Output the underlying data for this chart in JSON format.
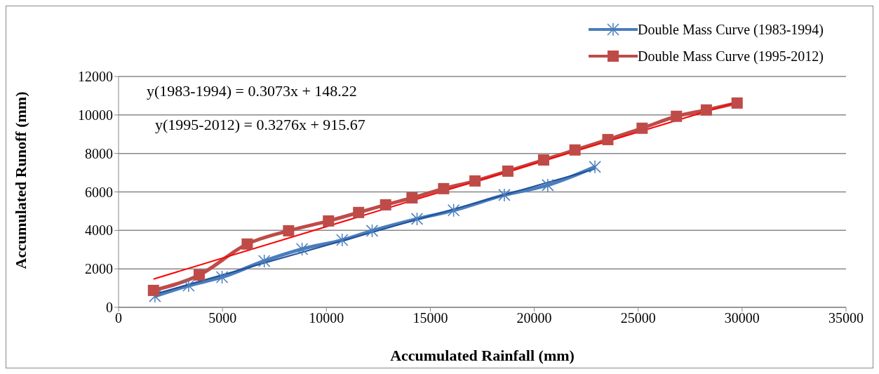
{
  "chart_data": {
    "type": "line",
    "xlabel": "Accumulated Rainfall (mm)",
    "ylabel": "Accumulated Runoff (mm)",
    "xlim": [
      0,
      35000
    ],
    "xticks": [
      0,
      5000,
      10000,
      15000,
      20000,
      25000,
      30000,
      35000
    ],
    "ylim": [
      0,
      12000
    ],
    "yticks": [
      0,
      2000,
      4000,
      6000,
      8000,
      10000,
      12000
    ],
    "grid": "y",
    "legend": "top right",
    "annotations": [
      "y(1983-1994) = 0.3073x + 148.22",
      "y(1995-2012) = 0.3276x + 915.67"
    ],
    "series": [
      {
        "name": "Double Mass Curve (1983-1994)",
        "color": "#4a7ebb",
        "marker": "cross",
        "x": [
          1750,
          3370,
          4980,
          7010,
          8830,
          10760,
          12200,
          14360,
          16120,
          18560,
          20650,
          22920
        ],
        "values": [
          580,
          1130,
          1570,
          2410,
          3030,
          3500,
          3980,
          4600,
          5040,
          5840,
          6350,
          7300
        ]
      },
      {
        "name": "Double Mass Curve (1995-2012)",
        "color": "#be4b48",
        "marker": "square",
        "x": [
          1680,
          3880,
          6190,
          8180,
          10100,
          11550,
          12850,
          14120,
          15640,
          17150,
          18730,
          20450,
          21960,
          23540,
          25190,
          26840,
          28280,
          29760
        ],
        "values": [
          880,
          1680,
          3290,
          3980,
          4490,
          4930,
          5330,
          5690,
          6170,
          6570,
          7080,
          7660,
          8180,
          8720,
          9310,
          9930,
          10260,
          10620
        ]
      },
      {
        "color": "#1f4e9a",
        "marker": "none",
        "x": [
          1750,
          22920
        ],
        "values": [
          690,
          7190
        ]
      },
      {
        "color": "#ff0000",
        "marker": "none",
        "x": [
          1680,
          29760
        ],
        "values": [
          1470,
          10670
        ]
      }
    ]
  }
}
